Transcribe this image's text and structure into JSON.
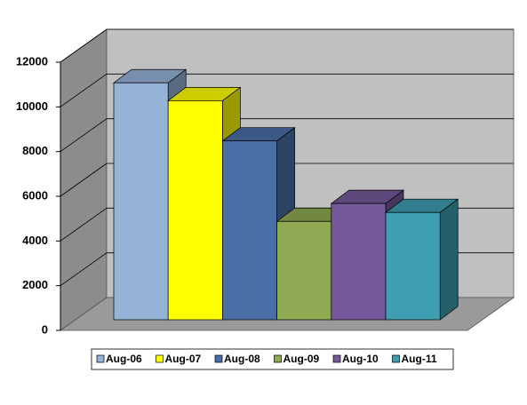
{
  "chart_data": {
    "type": "bar3d",
    "series": [
      {
        "name": "Aug-06",
        "color": "#95b3d7",
        "values": [
          10600
        ]
      },
      {
        "name": "Aug-07",
        "color": "#ffff00",
        "values": [
          9800
        ]
      },
      {
        "name": "Aug-08",
        "color": "#4a6fa5",
        "values": [
          8000
        ]
      },
      {
        "name": "Aug-09",
        "color": "#8faa52",
        "values": [
          4400
        ]
      },
      {
        "name": "Aug-10",
        "color": "#76599a",
        "values": [
          5200
        ]
      },
      {
        "name": "Aug-11",
        "color": "#3f9eb1",
        "values": [
          4800
        ]
      }
    ],
    "ylim": [
      0,
      12000
    ],
    "yticks": [
      0,
      2000,
      4000,
      6000,
      8000,
      10000,
      12000
    ],
    "grid": true,
    "legend": "bottom"
  }
}
